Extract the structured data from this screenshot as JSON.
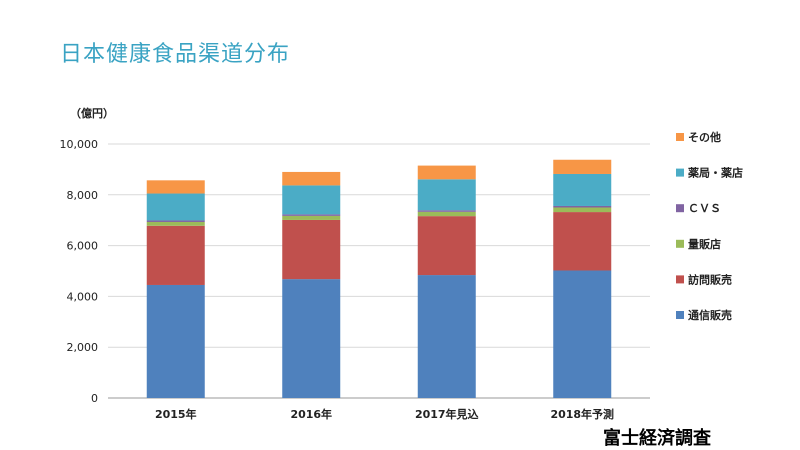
{
  "page": {
    "title": "日本健康食品渠道分布",
    "source": "富士経済調査"
  },
  "chart_data": {
    "type": "bar",
    "stacked": true,
    "unit_label": "（億円）",
    "categories": [
      "2015年",
      "2016年",
      "2017年見込",
      "2018年予測"
    ],
    "ylim": [
      0,
      10000
    ],
    "yticks": [
      0,
      2000,
      4000,
      6000,
      8000,
      10000
    ],
    "ytick_labels": [
      "0",
      "2,000",
      "4,000",
      "6,000",
      "8,000",
      "10,000"
    ],
    "grid": true,
    "legend_position": "right",
    "series": [
      {
        "name": "通信販売",
        "color": "#4f81bd",
        "values": [
          4450,
          4680,
          4840,
          5020
        ]
      },
      {
        "name": "訪問販売",
        "color": "#c0504d",
        "values": [
          2330,
          2330,
          2320,
          2300
        ]
      },
      {
        "name": "量販店",
        "color": "#9bbb59",
        "values": [
          150,
          160,
          170,
          180
        ]
      },
      {
        "name": "ＣＶＳ",
        "color": "#8064a2",
        "values": [
          60,
          60,
          60,
          60
        ]
      },
      {
        "name": "薬局・薬店",
        "color": "#4bacc6",
        "values": [
          1060,
          1140,
          1220,
          1260
        ]
      },
      {
        "name": "その他",
        "color": "#f79646",
        "values": [
          520,
          530,
          540,
          560
        ]
      }
    ]
  }
}
